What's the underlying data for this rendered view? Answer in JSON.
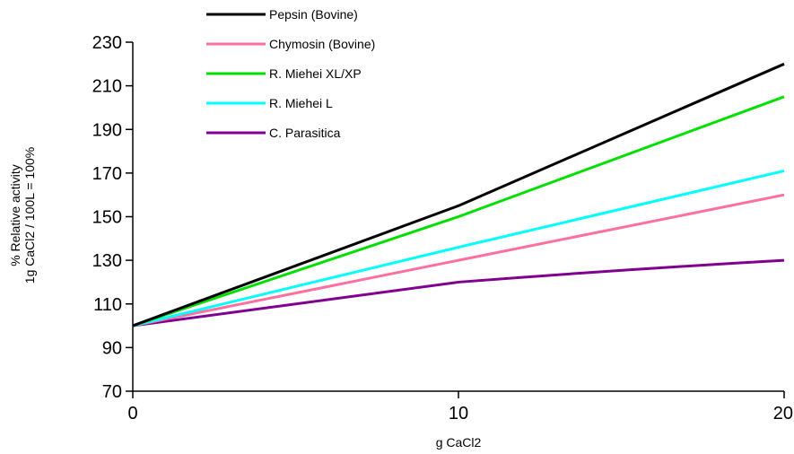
{
  "chart_data": {
    "type": "line",
    "title": "",
    "xlabel": "g CaCl2",
    "ylabel_lines": [
      "% Relative activity",
      "1g CaCl2 / 100L = 100%"
    ],
    "xlim": [
      0,
      20
    ],
    "ylim": [
      70,
      230
    ],
    "x_ticks": [
      "0",
      "10",
      "20"
    ],
    "y_ticks": [
      "70",
      "90",
      "110",
      "130",
      "150",
      "170",
      "190",
      "210",
      "230"
    ],
    "grid": false,
    "legend_position": "top-left",
    "series": [
      {
        "name": "Pepsin (Bovine)",
        "color": "#000000",
        "x": [
          0,
          10,
          20
        ],
        "y": [
          100,
          155,
          220
        ]
      },
      {
        "name": "Chymosin (Bovine)",
        "color": "#ff6fa0",
        "x": [
          0,
          10,
          20
        ],
        "y": [
          100,
          130,
          160
        ]
      },
      {
        "name": "R. Miehei XL/XP",
        "color": "#00e000",
        "x": [
          0,
          10,
          20
        ],
        "y": [
          100,
          150,
          205
        ]
      },
      {
        "name": "R. Miehei L",
        "color": "#00ffff",
        "x": [
          0,
          10,
          20
        ],
        "y": [
          100,
          136,
          171
        ]
      },
      {
        "name": "C. Parasitica",
        "color": "#800090",
        "x": [
          0,
          10,
          20
        ],
        "y": [
          100,
          120,
          130
        ]
      }
    ]
  }
}
